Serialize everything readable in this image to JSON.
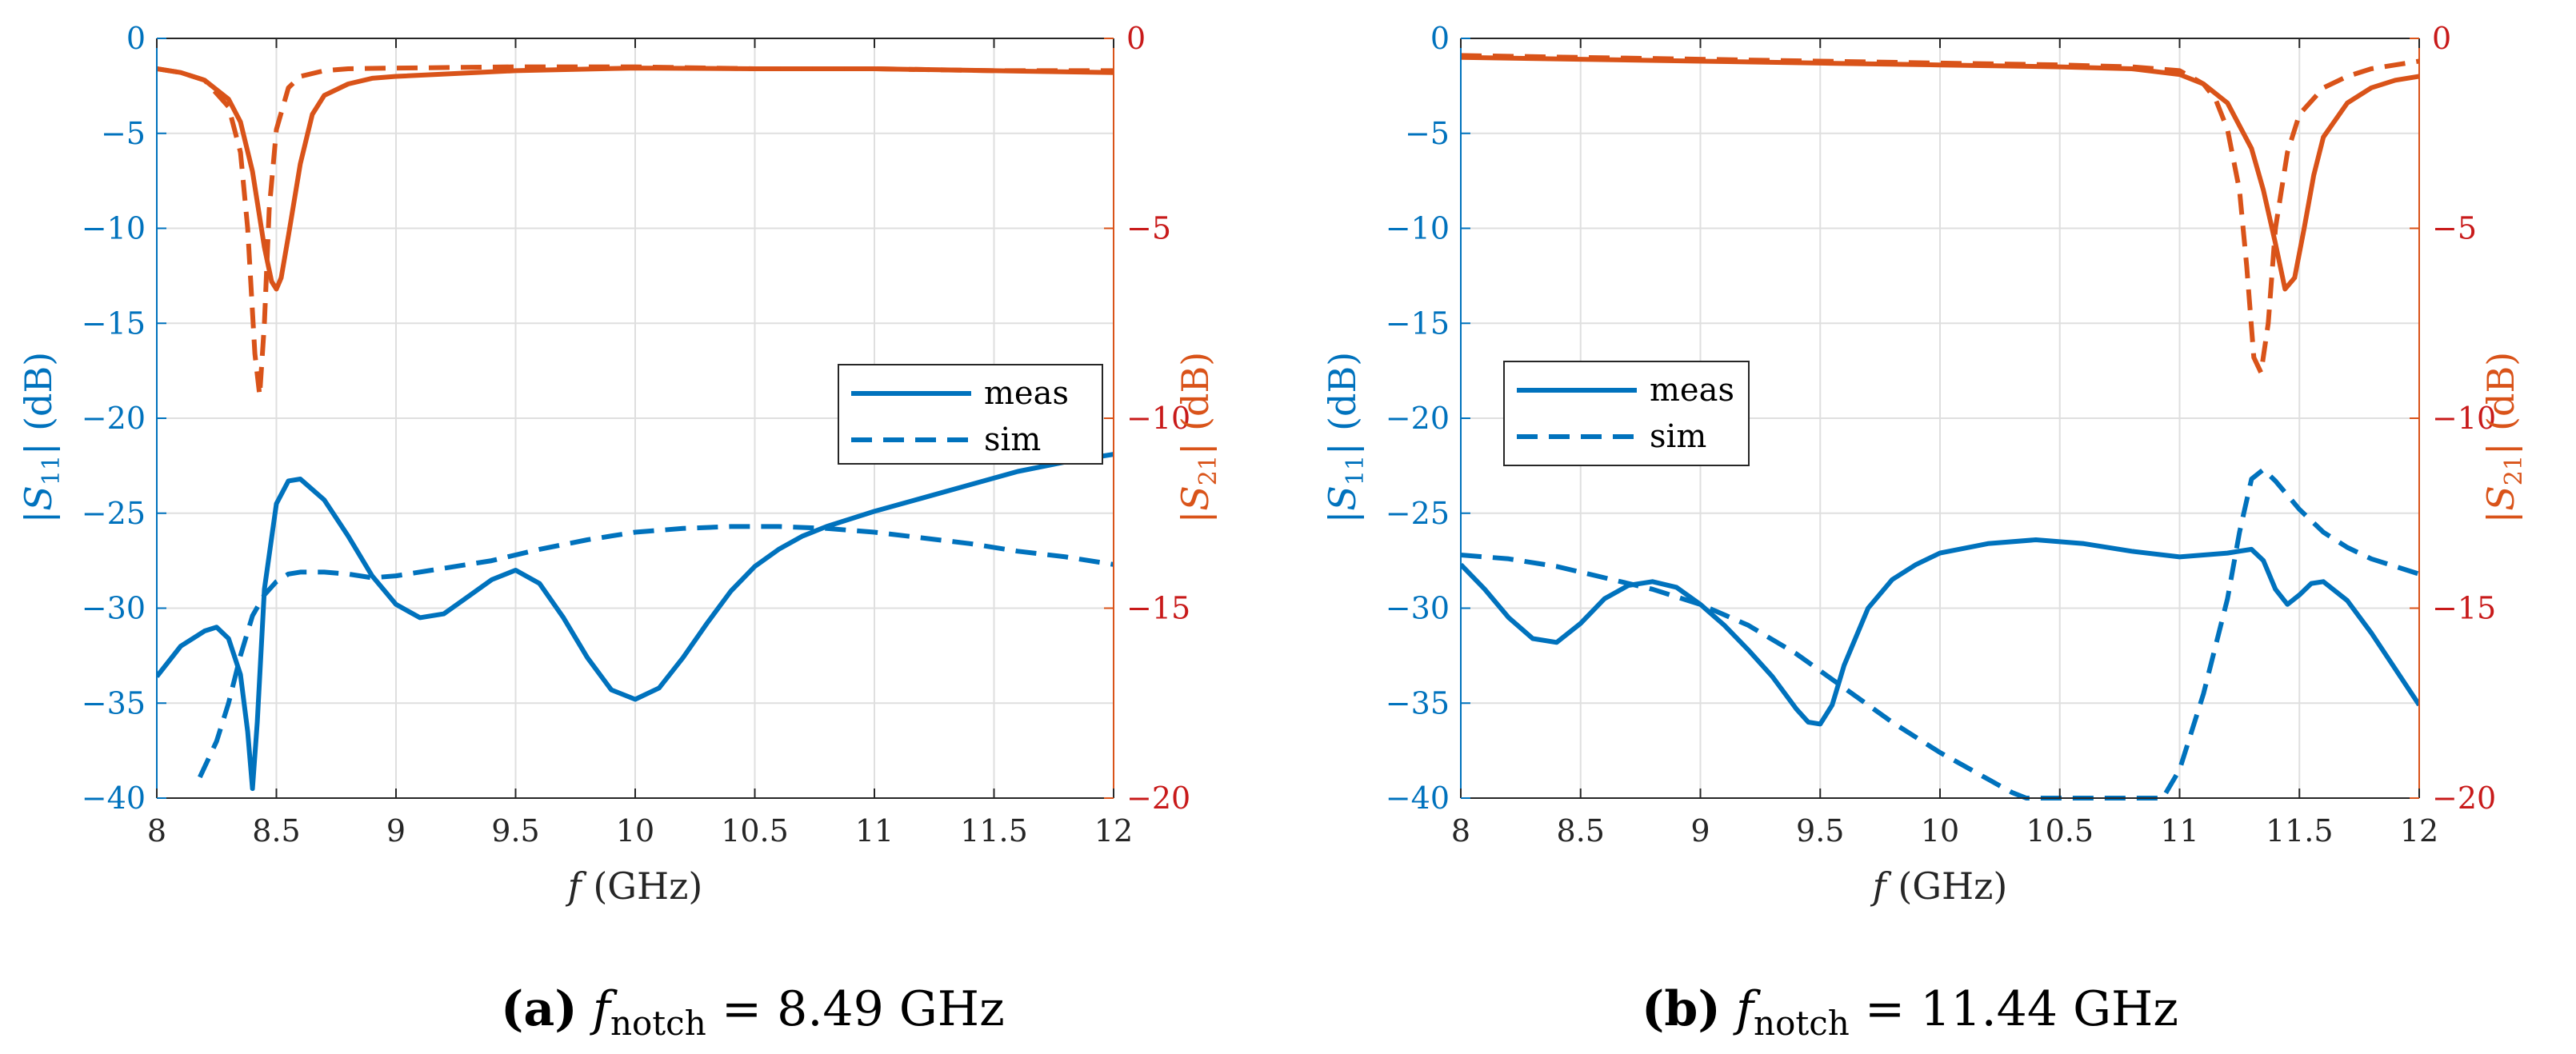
{
  "colors": {
    "s11": "#0072BD",
    "s21": "#D95319",
    "grid": "#dfdfdf",
    "axis": "#262626",
    "s21_tick": "#c81a1a"
  },
  "chart_data": [
    {
      "type": "line",
      "panel": "(a)",
      "caption": {
        "label": "(a)",
        "var": "f",
        "sub": "notch",
        "value": "= 8.49 GHz"
      },
      "xlabel": {
        "var": "f",
        "unit": "(GHz)"
      },
      "ylabel_left": {
        "pre": "|S",
        "sub": "11",
        "post": "| (dB)"
      },
      "ylabel_right": {
        "pre": "|S",
        "sub": "21",
        "post": "| (dB)"
      },
      "xlim": [
        8,
        12
      ],
      "ylim_left": [
        -40,
        0
      ],
      "ylim_right": [
        -20,
        0
      ],
      "xticks": [
        "8",
        "8.5",
        "9",
        "9.5",
        "10",
        "10.5",
        "11",
        "11.5",
        "12"
      ],
      "yticks_left": [
        "-40",
        "-35",
        "-30",
        "-25",
        "-20",
        "-15",
        "-10",
        "-5",
        "0"
      ],
      "yticks_right": [
        "-20",
        "-15",
        "-10",
        "-5",
        "0"
      ],
      "grid": true,
      "legend": {
        "position": "right",
        "entries": [
          "meas",
          "sim"
        ]
      },
      "series": [
        {
          "name": "meas",
          "quantity": "S11",
          "axis": "left",
          "style": "solid",
          "x": [
            8.0,
            8.1,
            8.2,
            8.25,
            8.3,
            8.35,
            8.38,
            8.4,
            8.42,
            8.45,
            8.5,
            8.55,
            8.6,
            8.7,
            8.8,
            8.9,
            9.0,
            9.1,
            9.2,
            9.3,
            9.4,
            9.5,
            9.6,
            9.7,
            9.8,
            9.9,
            10.0,
            10.1,
            10.2,
            10.3,
            10.4,
            10.5,
            10.6,
            10.7,
            10.8,
            10.9,
            11.0,
            11.2,
            11.4,
            11.6,
            11.8,
            12.0
          ],
          "y": [
            -33.6,
            -32.0,
            -31.2,
            -31.0,
            -31.6,
            -33.5,
            -36.5,
            -39.5,
            -36.0,
            -29.0,
            -24.5,
            -23.3,
            -23.2,
            -24.3,
            -26.2,
            -28.3,
            -29.8,
            -30.5,
            -30.3,
            -29.4,
            -28.5,
            -28.0,
            -28.7,
            -30.5,
            -32.6,
            -34.3,
            -34.8,
            -34.2,
            -32.6,
            -30.8,
            -29.1,
            -27.8,
            -26.9,
            -26.2,
            -25.7,
            -25.3,
            -24.9,
            -24.2,
            -23.5,
            -22.8,
            -22.3,
            -21.9
          ]
        },
        {
          "name": "sim",
          "quantity": "S11",
          "axis": "left",
          "style": "dashed",
          "x": [
            8.18,
            8.25,
            8.3,
            8.35,
            8.4,
            8.45,
            8.5,
            8.55,
            8.6,
            8.7,
            8.8,
            8.9,
            9.0,
            9.2,
            9.4,
            9.6,
            9.8,
            10.0,
            10.2,
            10.4,
            10.6,
            10.8,
            11.0,
            11.2,
            11.4,
            11.6,
            11.8,
            12.0
          ],
          "y": [
            -38.9,
            -37.0,
            -35.0,
            -32.5,
            -30.4,
            -29.3,
            -28.6,
            -28.2,
            -28.1,
            -28.1,
            -28.2,
            -28.4,
            -28.3,
            -27.9,
            -27.5,
            -26.9,
            -26.4,
            -26.0,
            -25.8,
            -25.7,
            -25.7,
            -25.8,
            -26.0,
            -26.3,
            -26.6,
            -27.0,
            -27.3,
            -27.7
          ]
        },
        {
          "name": "meas",
          "quantity": "S21",
          "axis": "right",
          "style": "solid",
          "x": [
            8.0,
            8.1,
            8.2,
            8.3,
            8.35,
            8.4,
            8.45,
            8.48,
            8.5,
            8.52,
            8.55,
            8.6,
            8.65,
            8.7,
            8.8,
            8.9,
            9.0,
            9.5,
            10.0,
            10.5,
            11.0,
            11.5,
            12.0
          ],
          "y": [
            -0.8,
            -0.9,
            -1.1,
            -1.6,
            -2.2,
            -3.5,
            -5.5,
            -6.4,
            -6.6,
            -6.3,
            -5.2,
            -3.3,
            -2.0,
            -1.5,
            -1.2,
            -1.05,
            -1.0,
            -0.85,
            -0.78,
            -0.8,
            -0.8,
            -0.85,
            -0.9
          ]
        },
        {
          "name": "sim",
          "quantity": "S21",
          "axis": "right",
          "style": "dashed",
          "x": [
            8.0,
            8.1,
            8.2,
            8.3,
            8.35,
            8.38,
            8.41,
            8.43,
            8.45,
            8.47,
            8.5,
            8.55,
            8.6,
            8.7,
            8.8,
            9.0,
            9.5,
            10.0,
            10.5,
            11.0,
            11.5,
            12.0
          ],
          "y": [
            -0.8,
            -0.9,
            -1.1,
            -1.8,
            -3.0,
            -5.0,
            -8.3,
            -9.4,
            -7.5,
            -4.5,
            -2.4,
            -1.3,
            -1.0,
            -0.85,
            -0.8,
            -0.78,
            -0.75,
            -0.75,
            -0.8,
            -0.8,
            -0.85,
            -0.85
          ]
        }
      ]
    },
    {
      "type": "line",
      "panel": "(b)",
      "caption": {
        "label": "(b)",
        "var": "f",
        "sub": "notch",
        "value": "= 11.44 GHz"
      },
      "xlabel": {
        "var": "f",
        "unit": "(GHz)"
      },
      "ylabel_left": {
        "pre": "|S",
        "sub": "11",
        "post": "| (dB)"
      },
      "ylabel_right": {
        "pre": "|S",
        "sub": "21",
        "post": "| (dB)"
      },
      "xlim": [
        8,
        12
      ],
      "ylim_left": [
        -40,
        0
      ],
      "ylim_right": [
        -20,
        0
      ],
      "xticks": [
        "8",
        "8.5",
        "9",
        "9.5",
        "10",
        "10.5",
        "11",
        "11.5",
        "12"
      ],
      "yticks_left": [
        "-40",
        "-35",
        "-30",
        "-25",
        "-20",
        "-15",
        "-10",
        "-5",
        "0"
      ],
      "yticks_right": [
        "-20",
        "-15",
        "-10",
        "-5",
        "0"
      ],
      "grid": true,
      "legend": {
        "position": "left",
        "entries": [
          "meas",
          "sim"
        ]
      },
      "series": [
        {
          "name": "meas",
          "quantity": "S11",
          "axis": "left",
          "style": "solid",
          "x": [
            8.0,
            8.1,
            8.2,
            8.3,
            8.4,
            8.5,
            8.6,
            8.7,
            8.8,
            8.9,
            9.0,
            9.1,
            9.2,
            9.3,
            9.4,
            9.45,
            9.5,
            9.55,
            9.6,
            9.7,
            9.8,
            9.9,
            10.0,
            10.2,
            10.4,
            10.6,
            10.8,
            11.0,
            11.2,
            11.3,
            11.35,
            11.4,
            11.45,
            11.5,
            11.55,
            11.6,
            11.7,
            11.8,
            11.9,
            12.0
          ],
          "y": [
            -27.7,
            -29.0,
            -30.5,
            -31.6,
            -31.8,
            -30.8,
            -29.5,
            -28.8,
            -28.6,
            -28.9,
            -29.8,
            -30.9,
            -32.2,
            -33.6,
            -35.3,
            -36.0,
            -36.1,
            -35.1,
            -33.0,
            -30.0,
            -28.5,
            -27.7,
            -27.1,
            -26.6,
            -26.4,
            -26.6,
            -27.0,
            -27.3,
            -27.1,
            -26.9,
            -27.5,
            -29.0,
            -29.8,
            -29.3,
            -28.7,
            -28.6,
            -29.6,
            -31.3,
            -33.2,
            -35.1
          ]
        },
        {
          "name": "sim",
          "quantity": "S11",
          "axis": "left",
          "style": "dashed",
          "x": [
            8.0,
            8.2,
            8.4,
            8.6,
            8.8,
            9.0,
            9.2,
            9.4,
            9.6,
            9.8,
            10.0,
            10.2,
            10.3,
            10.36,
            10.93,
            11.0,
            11.1,
            11.2,
            11.25,
            11.3,
            11.35,
            11.4,
            11.5,
            11.6,
            11.7,
            11.8,
            11.9,
            12.0
          ],
          "y": [
            -27.2,
            -27.4,
            -27.8,
            -28.4,
            -29.0,
            -29.8,
            -30.9,
            -32.4,
            -34.2,
            -36.0,
            -37.6,
            -39.0,
            -39.7,
            -40.0,
            -40.0,
            -38.5,
            -34.5,
            -29.5,
            -26.0,
            -23.2,
            -22.7,
            -23.3,
            -24.8,
            -26.0,
            -26.8,
            -27.4,
            -27.8,
            -28.2
          ]
        },
        {
          "name": "meas",
          "quantity": "S21",
          "axis": "right",
          "style": "solid",
          "x": [
            8.0,
            8.5,
            9.0,
            9.5,
            10.0,
            10.5,
            10.8,
            11.0,
            11.1,
            11.2,
            11.3,
            11.35,
            11.4,
            11.44,
            11.48,
            11.52,
            11.56,
            11.6,
            11.7,
            11.8,
            11.9,
            12.0
          ],
          "y": [
            -0.5,
            -0.55,
            -0.6,
            -0.65,
            -0.7,
            -0.75,
            -0.8,
            -0.95,
            -1.2,
            -1.7,
            -2.9,
            -4.0,
            -5.4,
            -6.6,
            -6.3,
            -5.0,
            -3.6,
            -2.6,
            -1.7,
            -1.3,
            -1.1,
            -1.0
          ]
        },
        {
          "name": "sim",
          "quantity": "S21",
          "axis": "right",
          "style": "dashed",
          "x": [
            8.0,
            8.5,
            9.0,
            9.5,
            10.0,
            10.5,
            10.8,
            11.0,
            11.1,
            11.15,
            11.2,
            11.25,
            11.28,
            11.31,
            11.34,
            11.37,
            11.4,
            11.45,
            11.5,
            11.6,
            11.7,
            11.8,
            11.9,
            12.0
          ],
          "y": [
            -0.45,
            -0.5,
            -0.55,
            -0.6,
            -0.65,
            -0.7,
            -0.75,
            -0.85,
            -1.2,
            -1.6,
            -2.4,
            -4.0,
            -6.0,
            -8.4,
            -8.8,
            -7.5,
            -5.0,
            -3.0,
            -2.0,
            -1.3,
            -1.0,
            -0.8,
            -0.7,
            -0.6
          ]
        }
      ]
    }
  ]
}
